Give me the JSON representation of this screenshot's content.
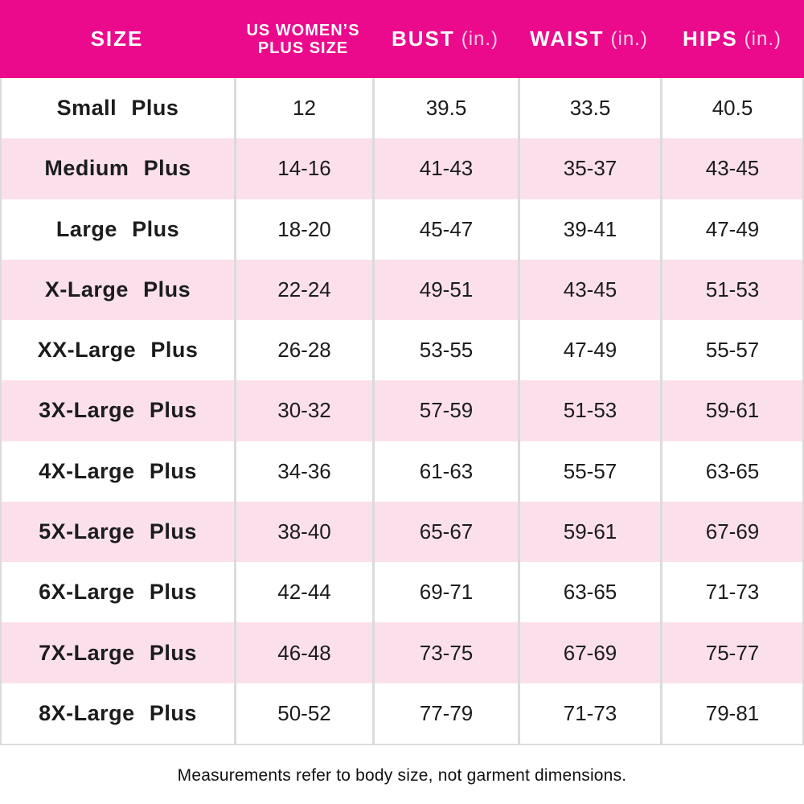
{
  "table": {
    "columns": [
      {
        "label": "SIZE",
        "unit": ""
      },
      {
        "label": "US WOMEN’S PLUS SIZE",
        "unit": ""
      },
      {
        "label": "BUST",
        "unit": "(in.)"
      },
      {
        "label": "WAIST",
        "unit": "(in.)"
      },
      {
        "label": "HIPS",
        "unit": "(in.)"
      }
    ],
    "rows": [
      {
        "size": "Small Plus",
        "us_plus_size": "12",
        "bust": "39.5",
        "waist": "33.5",
        "hips": "40.5"
      },
      {
        "size": "Medium Plus",
        "us_plus_size": "14-16",
        "bust": "41-43",
        "waist": "35-37",
        "hips": "43-45"
      },
      {
        "size": "Large Plus",
        "us_plus_size": "18-20",
        "bust": "45-47",
        "waist": "39-41",
        "hips": "47-49"
      },
      {
        "size": "X-Large Plus",
        "us_plus_size": "22-24",
        "bust": "49-51",
        "waist": "43-45",
        "hips": "51-53"
      },
      {
        "size": "XX-Large Plus",
        "us_plus_size": "26-28",
        "bust": "53-55",
        "waist": "47-49",
        "hips": "55-57"
      },
      {
        "size": "3X-Large Plus",
        "us_plus_size": "30-32",
        "bust": "57-59",
        "waist": "51-53",
        "hips": "59-61"
      },
      {
        "size": "4X-Large Plus",
        "us_plus_size": "34-36",
        "bust": "61-63",
        "waist": "55-57",
        "hips": "63-65"
      },
      {
        "size": "5X-Large Plus",
        "us_plus_size": "38-40",
        "bust": "65-67",
        "waist": "59-61",
        "hips": "67-69"
      },
      {
        "size": "6X-Large Plus",
        "us_plus_size": "42-44",
        "bust": "69-71",
        "waist": "63-65",
        "hips": "71-73"
      },
      {
        "size": "7X-Large Plus",
        "us_plus_size": "46-48",
        "bust": "73-75",
        "waist": "67-69",
        "hips": "75-77"
      },
      {
        "size": "8X-Large Plus",
        "us_plus_size": "50-52",
        "bust": "77-79",
        "waist": "71-73",
        "hips": "79-81"
      }
    ]
  },
  "footer": {
    "note": "Measurements refer to body size, not garment dimensions."
  },
  "colors": {
    "header_bg": "#EB0A8C",
    "header_text": "#FFFFFF",
    "header_unit_text": "#F8CFE4",
    "row_alt_bg": "#FBE0EC",
    "row_bg": "#FFFFFF",
    "divider": "#DBDBDB",
    "body_text": "#1C1C1E"
  },
  "chart_data": {
    "type": "table",
    "title": "US Women's Plus Size Chart",
    "columns": [
      "SIZE",
      "US WOMEN’S PLUS SIZE",
      "BUST (in.)",
      "WAIST (in.)",
      "HIPS (in.)"
    ],
    "rows": [
      [
        "Small Plus",
        "12",
        "39.5",
        "33.5",
        "40.5"
      ],
      [
        "Medium Plus",
        "14-16",
        "41-43",
        "35-37",
        "43-45"
      ],
      [
        "Large Plus",
        "18-20",
        "45-47",
        "39-41",
        "47-49"
      ],
      [
        "X-Large Plus",
        "22-24",
        "49-51",
        "43-45",
        "51-53"
      ],
      [
        "XX-Large Plus",
        "26-28",
        "53-55",
        "47-49",
        "55-57"
      ],
      [
        "3X-Large Plus",
        "30-32",
        "57-59",
        "51-53",
        "59-61"
      ],
      [
        "4X-Large Plus",
        "34-36",
        "61-63",
        "55-57",
        "63-65"
      ],
      [
        "5X-Large Plus",
        "38-40",
        "65-67",
        "59-61",
        "67-69"
      ],
      [
        "6X-Large Plus",
        "42-44",
        "69-71",
        "63-65",
        "71-73"
      ],
      [
        "7X-Large Plus",
        "46-48",
        "73-75",
        "67-69",
        "75-77"
      ],
      [
        "8X-Large Plus",
        "50-52",
        "77-79",
        "71-73",
        "79-81"
      ]
    ],
    "note": "Measurements refer to body size, not garment dimensions.",
    "layout": {
      "header_position": "top",
      "alternating_rows": true,
      "grid": "vertical-dividers-body-only"
    }
  }
}
